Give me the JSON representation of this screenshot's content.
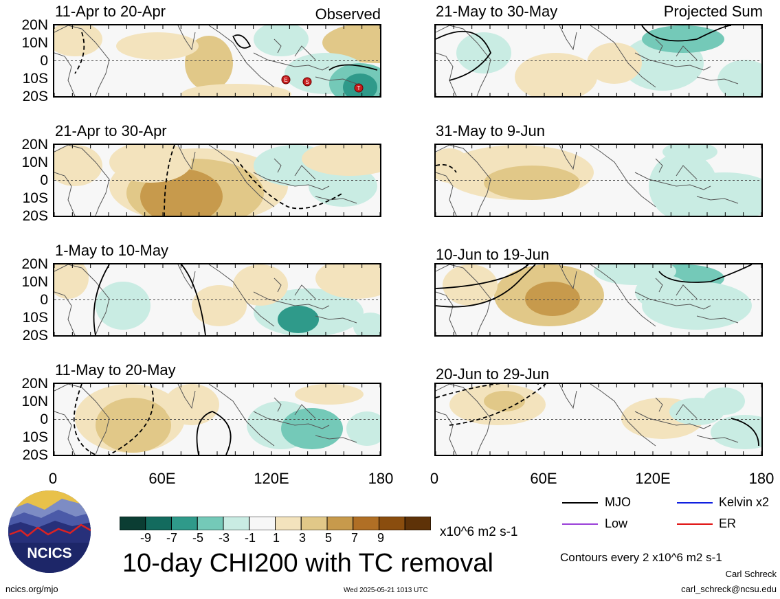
{
  "observed_label": "Observed",
  "projected_label": "Projected Sum",
  "panels_left": [
    {
      "title": "11-Apr to 20-Apr"
    },
    {
      "title": "21-Apr to 30-Apr"
    },
    {
      "title": "1-May to 10-May"
    },
    {
      "title": "11-May to 20-May"
    }
  ],
  "panels_right": [
    {
      "title": "21-May to 30-May"
    },
    {
      "title": "31-May to 9-Jun"
    },
    {
      "title": "10-Jun to 19-Jun"
    },
    {
      "title": "20-Jun to 29-Jun"
    }
  ],
  "lat_labels": [
    "20N",
    "10N",
    "0",
    "10S",
    "20S"
  ],
  "lon_labels": [
    "0",
    "60E",
    "120E",
    "180"
  ],
  "colorbar": {
    "colors": [
      "#0b3d33",
      "#136b5e",
      "#2f9a8a",
      "#74c9b8",
      "#c9ece3",
      "#f7f7f7",
      "#f3e3bd",
      "#e1c888",
      "#c79a4c",
      "#b06f25",
      "#8a4d0e",
      "#5e3208"
    ],
    "tick_labels": [
      "-9",
      "-7",
      "-5",
      "-3",
      "-1",
      "1",
      "3",
      "5",
      "7",
      "9"
    ],
    "units": "x10^6 m2 s-1"
  },
  "main_title": "10-day CHI200 with TC removal",
  "legend": {
    "items": [
      {
        "label": "MJO",
        "color": "#000000"
      },
      {
        "label": "Kelvin x2",
        "color": "#1020e0"
      },
      {
        "label": "Low",
        "color": "#9a40d8"
      },
      {
        "label": "ER",
        "color": "#e01010"
      }
    ],
    "contour_note": "Contours every 2 x10^6 m2 s-1"
  },
  "logo_text": "NCICS",
  "url": "ncics.org/mjo",
  "timestamp": "Wed 2025-05-21 1013 UTC",
  "author": "Carl Schreck",
  "email": "carl_schreck@ncsu.edu",
  "tc_markers": [
    "E",
    "S",
    "T"
  ]
}
